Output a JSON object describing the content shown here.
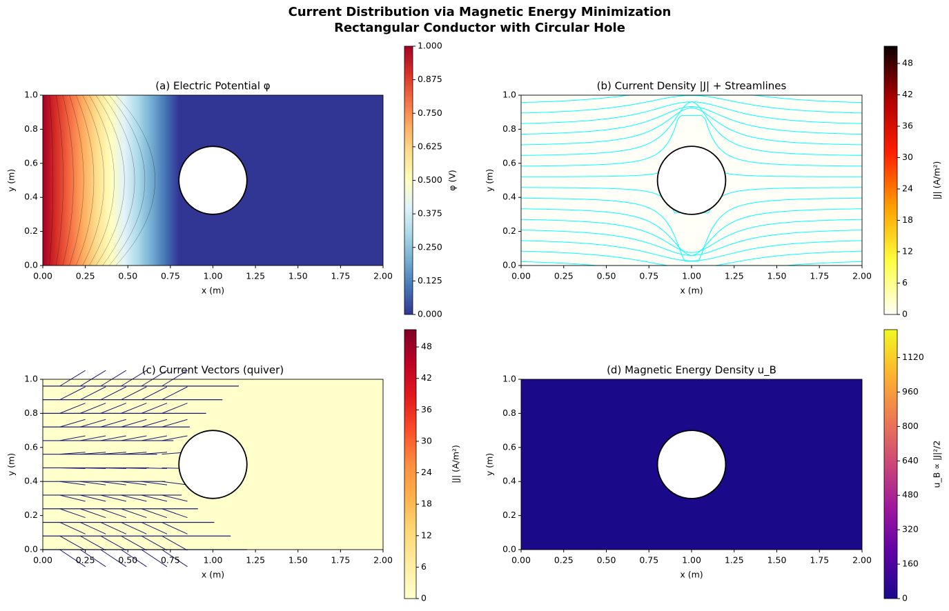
{
  "figure": {
    "title": "Current Distribution via Magnetic Energy Minimization",
    "subtitle": "Rectangular Conductor with Circular Hole"
  },
  "chart_data": [
    {
      "type": "contour",
      "title": "(a) Electric Potential φ",
      "x_label": "x (m)",
      "y_label": "y (m)",
      "xlim": [
        0,
        2
      ],
      "ylim": [
        0,
        1
      ],
      "xticks": [
        {
          "value": 0,
          "label": "0.00"
        },
        {
          "value": 0.25,
          "label": "0.25"
        },
        {
          "value": 0.5,
          "label": "0.50"
        },
        {
          "value": 0.75,
          "label": "0.75"
        },
        {
          "value": 1,
          "label": "1.00"
        },
        {
          "value": 1.25,
          "label": "1.25"
        },
        {
          "value": 1.5,
          "label": "1.50"
        },
        {
          "value": 1.75,
          "label": "1.75"
        },
        {
          "value": 2,
          "label": "2.00"
        }
      ],
      "yticks": [
        {
          "value": 0,
          "label": "0.0"
        },
        {
          "value": 0.2,
          "label": "0.2"
        },
        {
          "value": 0.4,
          "label": "0.4"
        },
        {
          "value": 0.6,
          "label": "0.6"
        },
        {
          "value": 0.8,
          "label": "0.8"
        },
        {
          "value": 1,
          "label": "1.0"
        }
      ],
      "hole": {
        "center": [
          1,
          0.5
        ],
        "radius": 0.2
      },
      "colorbar": {
        "label": "φ (V)",
        "lim": [
          0,
          1
        ],
        "ticks": [
          {
            "value": 0,
            "label": "0.000"
          },
          {
            "value": 0.125,
            "label": "0.125"
          },
          {
            "value": 0.25,
            "label": "0.250"
          },
          {
            "value": 0.375,
            "label": "0.375"
          },
          {
            "value": 0.5,
            "label": "0.500"
          },
          {
            "value": 0.625,
            "label": "0.625"
          },
          {
            "value": 0.75,
            "label": "0.750"
          },
          {
            "value": 0.875,
            "label": "0.875"
          },
          {
            "value": 1,
            "label": "1.000"
          }
        ],
        "colors": [
          "#313695",
          "#4575b4",
          "#74add1",
          "#abd9e9",
          "#e0f3f8",
          "#ffffbf",
          "#fee090",
          "#fdae61",
          "#f46d43",
          "#d73027",
          "#a50026"
        ]
      }
    },
    {
      "type": "streamplot",
      "title": "(b) Current Density |J| + Streamlines",
      "x_label": "x (m)",
      "y_label": "y (m)",
      "xlim": [
        0,
        2
      ],
      "ylim": [
        0,
        1
      ],
      "xticks": [
        {
          "value": 0,
          "label": "0.00"
        },
        {
          "value": 0.25,
          "label": "0.25"
        },
        {
          "value": 0.5,
          "label": "0.50"
        },
        {
          "value": 0.75,
          "label": "0.75"
        },
        {
          "value": 1,
          "label": "1.00"
        },
        {
          "value": 1.25,
          "label": "1.25"
        },
        {
          "value": 1.5,
          "label": "1.50"
        },
        {
          "value": 1.75,
          "label": "1.75"
        },
        {
          "value": 2,
          "label": "2.00"
        }
      ],
      "yticks": [
        {
          "value": 0,
          "label": "0.0"
        },
        {
          "value": 0.2,
          "label": "0.2"
        },
        {
          "value": 0.4,
          "label": "0.4"
        },
        {
          "value": 0.6,
          "label": "0.6"
        },
        {
          "value": 0.8,
          "label": "0.8"
        },
        {
          "value": 1,
          "label": "1.0"
        }
      ],
      "hole": {
        "center": [
          1,
          0.5
        ],
        "radius": 0.2
      },
      "line_color": "#00ffff",
      "colorbar": {
        "label": "|J| (A/m²)",
        "lim": [
          0,
          51.3
        ],
        "ticks": [
          0,
          6,
          12,
          18,
          24,
          30,
          36,
          42,
          48
        ],
        "colors": [
          "#fffff8",
          "#ffff40",
          "#ffa000",
          "#ff2000",
          "#b00000",
          "#0b0000"
        ]
      }
    },
    {
      "type": "quiver",
      "title": "(c) Current Vectors (quiver)",
      "x_label": "x (m)",
      "y_label": "y (m)",
      "xlim": [
        0,
        2
      ],
      "ylim": [
        0,
        1
      ],
      "xticks": [
        {
          "value": 0,
          "label": "0.00"
        },
        {
          "value": 0.25,
          "label": "0.25"
        },
        {
          "value": 0.5,
          "label": "0.50"
        },
        {
          "value": 0.75,
          "label": "0.75"
        },
        {
          "value": 1,
          "label": "1.00"
        },
        {
          "value": 1.25,
          "label": "1.25"
        },
        {
          "value": 1.5,
          "label": "1.50"
        },
        {
          "value": 1.75,
          "label": "1.75"
        },
        {
          "value": 2,
          "label": "2.00"
        }
      ],
      "yticks": [
        {
          "value": 0,
          "label": "0.0"
        },
        {
          "value": 0.2,
          "label": "0.2"
        },
        {
          "value": 0.4,
          "label": "0.4"
        },
        {
          "value": 0.6,
          "label": "0.6"
        },
        {
          "value": 0.8,
          "label": "0.8"
        },
        {
          "value": 1,
          "label": "1.0"
        }
      ],
      "hole": {
        "center": [
          1,
          0.5
        ],
        "radius": 0.2
      },
      "arrow_color": "#191970",
      "colorbar": {
        "label": "|J| (A/m²)",
        "lim": [
          0,
          51.3
        ],
        "ticks": [
          0,
          6,
          12,
          18,
          24,
          30,
          36,
          42,
          48
        ],
        "colors": [
          "#ffffcc",
          "#ffeda0",
          "#fed976",
          "#feb24c",
          "#fd8d3c",
          "#fc4e2a",
          "#e31a1c",
          "#bd0026",
          "#800026"
        ]
      }
    },
    {
      "type": "heatmap",
      "title": "(d) Magnetic Energy Density u_B",
      "x_label": "x (m)",
      "y_label": "y (m)",
      "xlim": [
        0,
        2
      ],
      "ylim": [
        0,
        1
      ],
      "xticks": [
        {
          "value": 0,
          "label": "0.00"
        },
        {
          "value": 0.25,
          "label": "0.25"
        },
        {
          "value": 0.5,
          "label": "0.50"
        },
        {
          "value": 0.75,
          "label": "0.75"
        },
        {
          "value": 1,
          "label": "1.00"
        },
        {
          "value": 1.25,
          "label": "1.25"
        },
        {
          "value": 1.5,
          "label": "1.50"
        },
        {
          "value": 1.75,
          "label": "1.75"
        },
        {
          "value": 2,
          "label": "2.00"
        }
      ],
      "yticks": [
        {
          "value": 0,
          "label": "0.0"
        },
        {
          "value": 0.2,
          "label": "0.2"
        },
        {
          "value": 0.4,
          "label": "0.4"
        },
        {
          "value": 0.6,
          "label": "0.6"
        },
        {
          "value": 0.8,
          "label": "0.8"
        },
        {
          "value": 1,
          "label": "1.0"
        }
      ],
      "hole": {
        "center": [
          1,
          0.5
        ],
        "radius": 0.2
      },
      "colorbar": {
        "label": "u_B ∝ |J|²/2",
        "lim": [
          0,
          1250
        ],
        "ticks": [
          0,
          160,
          320,
          480,
          640,
          800,
          960,
          1120
        ],
        "colors": [
          "#1a0a8a",
          "#5c01a6",
          "#9c179e",
          "#cc4778",
          "#ed7953",
          "#fdb42f",
          "#f0f921"
        ]
      }
    }
  ]
}
